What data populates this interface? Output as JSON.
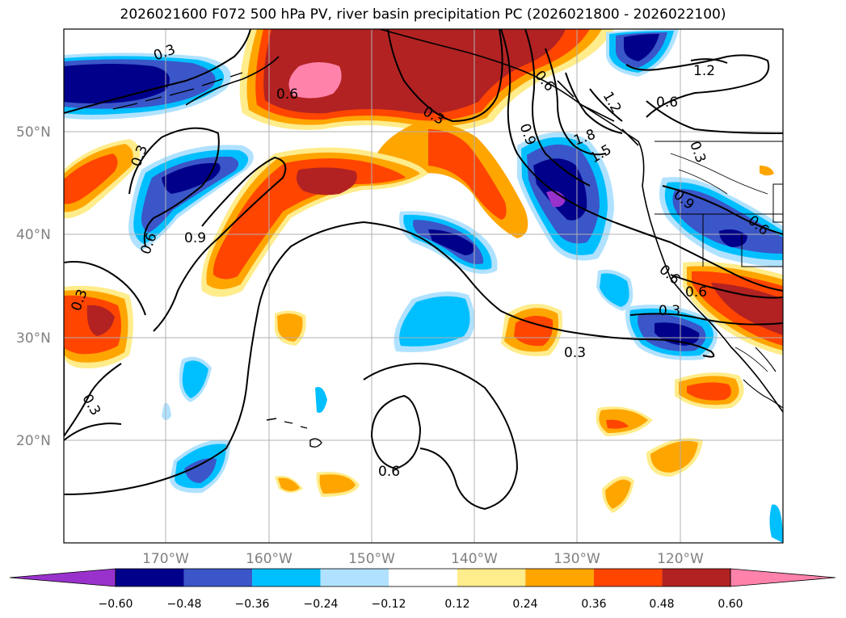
{
  "title": "2026021600 F072 500 hPa PV, river basin precipitation PC (2026021800 - 2026022100)",
  "map": {
    "lat_labels": [
      "50°N",
      "40°N",
      "30°N",
      "20°N"
    ],
    "lon_labels": [
      "170°W",
      "160°W",
      "150°W",
      "140°W",
      "130°W",
      "120°W"
    ],
    "contour_labels": [
      "0.3",
      "0.6",
      "0.3",
      "0.3",
      "0.6",
      "0.9",
      "0.6",
      "0.3",
      "0.3",
      "0.6",
      "0.3",
      "0.9",
      "1.2",
      "1.5",
      "1.8",
      "0.6",
      "1.2",
      "0.3",
      "0.9",
      "0.6",
      "0.6",
      "0.3",
      "0.6"
    ]
  },
  "colorbar": {
    "ticks": [
      "−0.60",
      "−0.48",
      "−0.36",
      "−0.24",
      "−0.12",
      "0.12",
      "0.24",
      "0.36",
      "0.48",
      "0.60"
    ],
    "colors": [
      "#9932cc",
      "#00008b",
      "#3a56c8",
      "#00bfff",
      "#b0e2ff",
      "#ffffff",
      "#ffec8b",
      "#ffa500",
      "#ff4500",
      "#b22222",
      "#ff82ab"
    ]
  },
  "colors": {
    "neg_very_strong": "#00008b",
    "neg_strong": "#3a56c8",
    "neg_mid": "#00bfff",
    "neg_weak": "#b0e2ff",
    "pos_weak": "#ffec8b",
    "pos_mid": "#ffa500",
    "pos_strong": "#ff4500",
    "pos_very_strong": "#b22222",
    "pos_extreme": "#ff82ab",
    "purple": "#9932cc",
    "grid": "#b0b0b0",
    "axis_label": "#808080"
  }
}
